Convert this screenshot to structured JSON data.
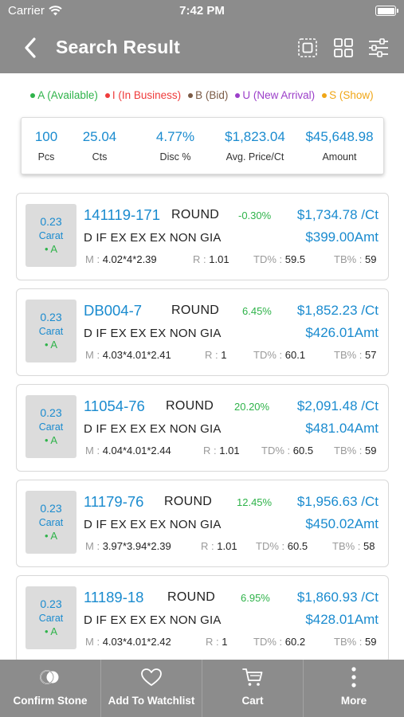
{
  "status_bar": {
    "carrier": "Carrier",
    "time": "7:42 PM"
  },
  "nav": {
    "title": "Search Result"
  },
  "legend": [
    {
      "label": "A (Available)",
      "color": "#2fb34a"
    },
    {
      "label": "I (In Business)",
      "color": "#ef3b3b"
    },
    {
      "label": "B (Bid)",
      "color": "#7a5a45"
    },
    {
      "label": "U (New Arrival)",
      "color": "#9b3fc9"
    },
    {
      "label": "S (Show)",
      "color": "#f0a616"
    }
  ],
  "summary": [
    {
      "value": "100",
      "label": "Pcs"
    },
    {
      "value": "25.04",
      "label": "Cts"
    },
    {
      "value": "4.77%",
      "label": "Disc %"
    },
    {
      "value": "$1,823.04",
      "label": "Avg. Price/Ct"
    },
    {
      "value": "$45,648.98",
      "label": "Amount"
    }
  ],
  "stones": [
    {
      "carat": "0.23",
      "carat_label": "Carat",
      "status": "• A",
      "id": "141119-171",
      "shape": "ROUND",
      "discount": "-0.30%",
      "price_per_ct": "$1,734.78 /Ct",
      "specs": "D IF EX EX EX NON GIA",
      "amount": "$399.00Amt",
      "m_label": "M :",
      "measurements": "4.02*4*2.39",
      "r_label": "R :",
      "ratio": "1.01",
      "td_label": "TD% :",
      "td": "59.5",
      "tb_label": "TB% :",
      "tb": "59"
    },
    {
      "carat": "0.23",
      "carat_label": "Carat",
      "status": "• A",
      "id": "DB004-7",
      "shape": "ROUND",
      "discount": "6.45%",
      "price_per_ct": "$1,852.23 /Ct",
      "specs": "D IF EX EX EX NON GIA",
      "amount": "$426.01Amt",
      "m_label": "M :",
      "measurements": "4.03*4.01*2.41",
      "r_label": "R :",
      "ratio": "1",
      "td_label": "TD% :",
      "td": "60.1",
      "tb_label": "TB% :",
      "tb": "57"
    },
    {
      "carat": "0.23",
      "carat_label": "Carat",
      "status": "• A",
      "id": "11054-76",
      "shape": "ROUND",
      "discount": "20.20%",
      "price_per_ct": "$2,091.48 /Ct",
      "specs": "D IF EX EX EX NON GIA",
      "amount": "$481.04Amt",
      "m_label": "M :",
      "measurements": "4.04*4.01*2.44",
      "r_label": "R :",
      "ratio": "1.01",
      "td_label": "TD% :",
      "td": "60.5",
      "tb_label": "TB% :",
      "tb": "59"
    },
    {
      "carat": "0.23",
      "carat_label": "Carat",
      "status": "• A",
      "id": "11179-76",
      "shape": "ROUND",
      "discount": "12.45%",
      "price_per_ct": "$1,956.63 /Ct",
      "specs": "D IF EX EX EX NON GIA",
      "amount": "$450.02Amt",
      "m_label": "M :",
      "measurements": "3.97*3.94*2.39",
      "r_label": "R :",
      "ratio": "1.01",
      "td_label": "TD% :",
      "td": "60.5",
      "tb_label": "TB% :",
      "tb": "58"
    },
    {
      "carat": "0.23",
      "carat_label": "Carat",
      "status": "• A",
      "id": "11189-18",
      "shape": "ROUND",
      "discount": "6.95%",
      "price_per_ct": "$1,860.93 /Ct",
      "specs": "D IF EX EX EX NON GIA",
      "amount": "$428.01Amt",
      "m_label": "M :",
      "measurements": "4.03*4.01*2.42",
      "r_label": "R :",
      "ratio": "1",
      "td_label": "TD% :",
      "td": "60.2",
      "tb_label": "TB% :",
      "tb": "59"
    }
  ],
  "tabs": [
    {
      "label": "Confirm Stone",
      "icon": "diamond-check-icon"
    },
    {
      "label": "Add To Watchlist",
      "icon": "heart-icon"
    },
    {
      "label": "Cart",
      "icon": "cart-icon"
    },
    {
      "label": "More",
      "icon": "more-vertical-icon"
    }
  ],
  "colors": {
    "bar_gray": "#8c8c8c",
    "accent_blue": "#1a8bcf",
    "positive_green": "#2fb34a"
  }
}
